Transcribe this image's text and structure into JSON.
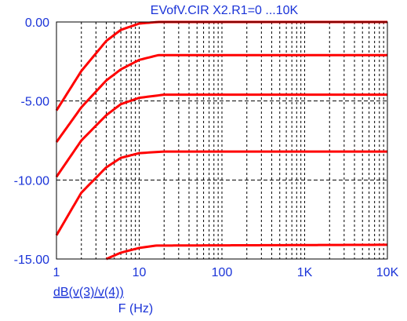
{
  "title": "EVofV.CIR X2.R1=0 ...10K",
  "colors": {
    "text": "#1a33d8",
    "trace": "#ff0000",
    "frame": "#000000",
    "grid": "#000000"
  },
  "chart_data": {
    "type": "line",
    "title": "EVofV.CIR X2.R1=0 ...10K",
    "xlabel": "F (Hz)",
    "ylabel": "dB(v(3)/v(4))",
    "x_scale": "log",
    "xlim": [
      1,
      10000
    ],
    "ylim": [
      -15,
      0
    ],
    "x_ticks": [
      {
        "value": 1,
        "label": "1"
      },
      {
        "value": 10,
        "label": "10"
      },
      {
        "value": 100,
        "label": "100"
      },
      {
        "value": 1000,
        "label": "1K"
      },
      {
        "value": 10000,
        "label": "10K"
      }
    ],
    "y_ticks": [
      {
        "value": 0,
        "label": "0.00"
      },
      {
        "value": -5,
        "label": "-5.00"
      },
      {
        "value": -10,
        "label": "-10.00"
      },
      {
        "value": -15,
        "label": "-15.00"
      }
    ],
    "grid": true,
    "series": [
      {
        "x": [
          1,
          2,
          4,
          6,
          10,
          17,
          10000
        ],
        "y": [
          -5.6,
          -3.1,
          -1.2,
          -0.5,
          -0.1,
          0.0,
          0.0
        ]
      },
      {
        "x": [
          1,
          2,
          4,
          6,
          10,
          17,
          10000
        ],
        "y": [
          -7.6,
          -5.4,
          -3.7,
          -3.0,
          -2.4,
          -2.1,
          -2.1
        ]
      },
      {
        "x": [
          1,
          2,
          4,
          6,
          10,
          20,
          10000
        ],
        "y": [
          -9.8,
          -7.5,
          -5.9,
          -5.2,
          -4.8,
          -4.6,
          -4.6
        ]
      },
      {
        "x": [
          1,
          2,
          4,
          6,
          10,
          20,
          10000
        ],
        "y": [
          -13.5,
          -10.8,
          -9.2,
          -8.6,
          -8.3,
          -8.2,
          -8.2
        ]
      },
      {
        "x": [
          4,
          6,
          10,
          16,
          10000
        ],
        "y": [
          -15.0,
          -14.6,
          -14.3,
          -14.15,
          -14.1
        ]
      }
    ]
  }
}
